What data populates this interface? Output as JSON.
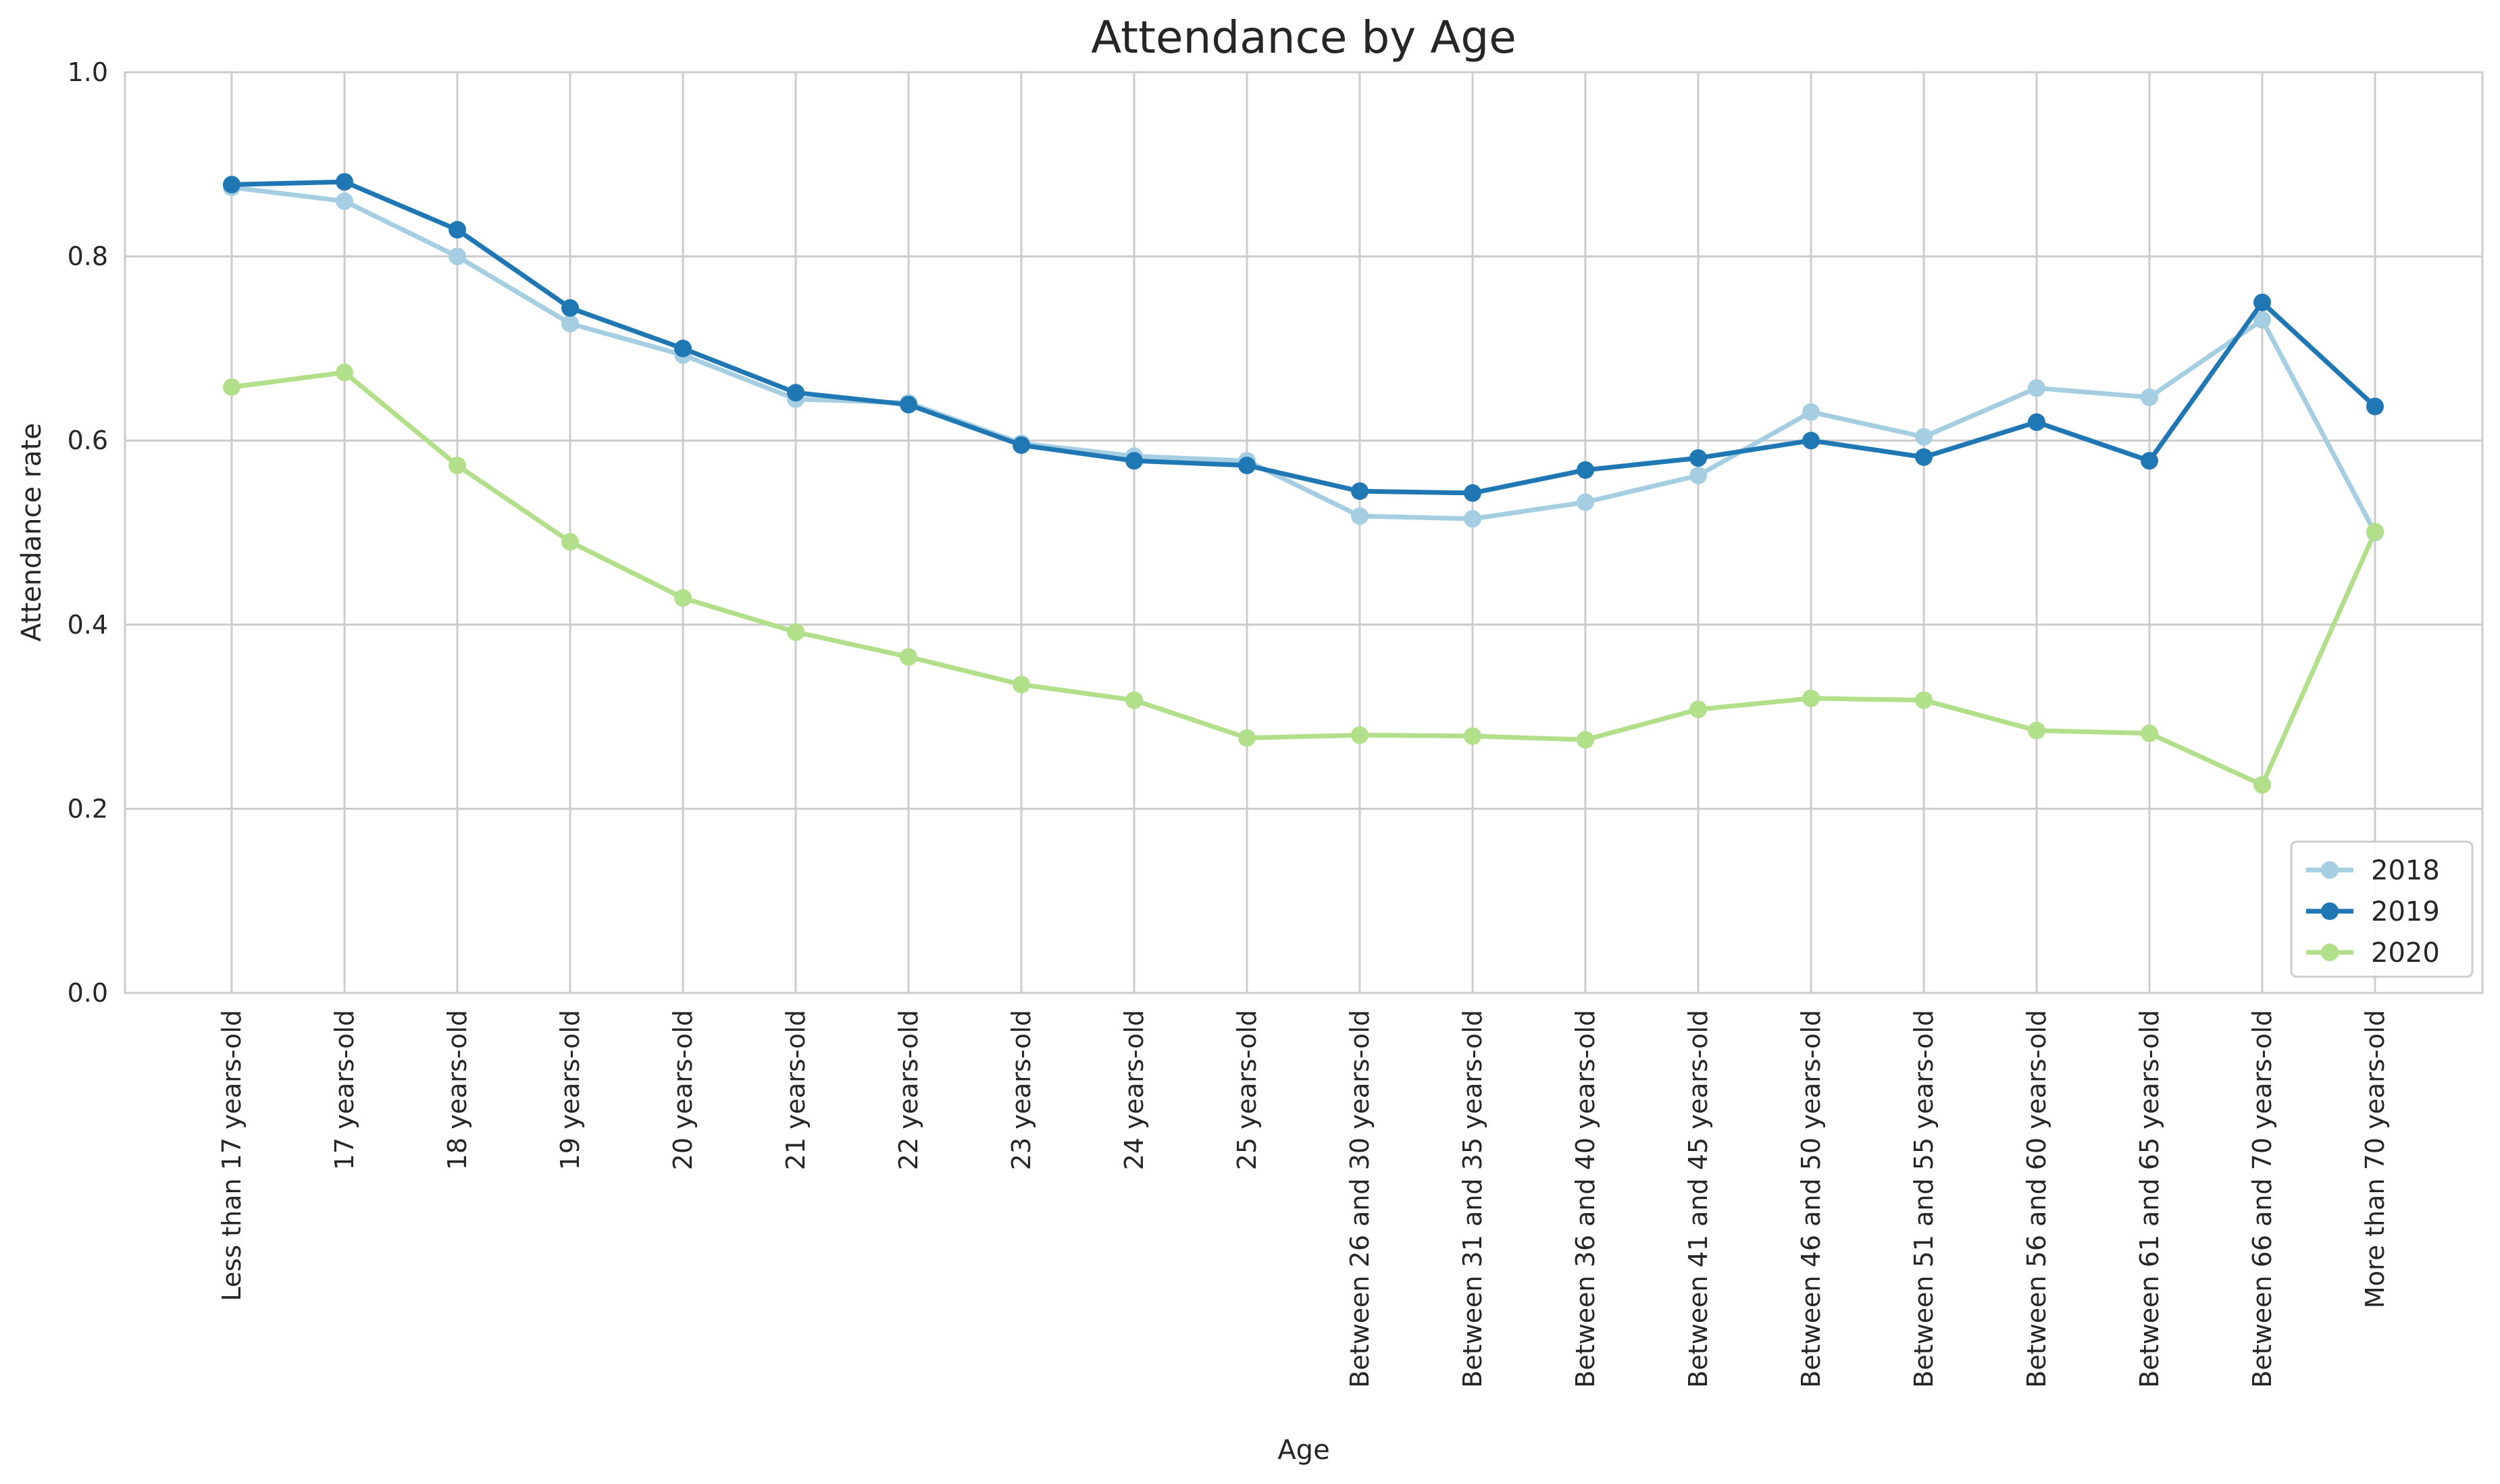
{
  "chart_data": {
    "type": "line",
    "title": "Attendance by Age",
    "xlabel": "Age",
    "ylabel": "Attendance rate",
    "ylim": [
      0,
      1
    ],
    "yticks": [
      "0.0",
      "0.2",
      "0.4",
      "0.6",
      "0.8",
      "1.0"
    ],
    "grid": true,
    "legend_position": "lower-right",
    "categories": [
      "Less than 17 years-old",
      "17 years-old",
      "18 years-old",
      "19 years-old",
      "20 years-old",
      "21 years-old",
      "22 years-old",
      "23 years-old",
      "24 years-old",
      "25 years-old",
      "Between 26 and 30 years-old",
      "Between 31 and 35 years-old",
      "Between 36 and 40 years-old",
      "Between 41 and 45 years-old",
      "Between 46 and 50 years-old",
      "Between 51 and 55 years-old",
      "Between 56 and 60 years-old",
      "Between 61 and 65 years-old",
      "Between 66 and 70 years-old",
      "More than 70 years-old"
    ],
    "series": [
      {
        "name": "2018",
        "color": "#a6cee3",
        "values": [
          0.875,
          0.86,
          0.8,
          0.727,
          0.693,
          0.645,
          0.641,
          0.597,
          0.583,
          0.578,
          0.518,
          0.515,
          0.533,
          0.562,
          0.631,
          0.604,
          0.657,
          0.647,
          0.731,
          0.5
        ]
      },
      {
        "name": "2019",
        "color": "#1f78b4",
        "values": [
          0.878,
          0.881,
          0.829,
          0.744,
          0.7,
          0.652,
          0.639,
          0.595,
          0.578,
          0.573,
          0.545,
          0.543,
          0.568,
          0.581,
          0.6,
          0.582,
          0.62,
          0.578,
          0.75,
          0.637
        ]
      },
      {
        "name": "2020",
        "color": "#b2df8a",
        "values": [
          0.658,
          0.674,
          0.573,
          0.49,
          0.429,
          0.392,
          0.365,
          0.335,
          0.318,
          0.277,
          0.28,
          0.279,
          0.275,
          0.308,
          0.32,
          0.318,
          0.285,
          0.282,
          0.226,
          0.501
        ]
      }
    ]
  }
}
